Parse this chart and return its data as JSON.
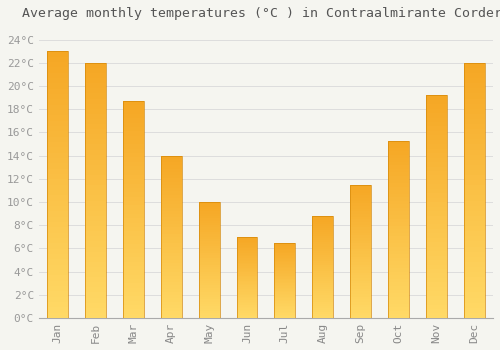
{
  "title": "Average monthly temperatures (°C ) in Contraalmirante Cordero",
  "months": [
    "Jan",
    "Feb",
    "Mar",
    "Apr",
    "May",
    "Jun",
    "Jul",
    "Aug",
    "Sep",
    "Oct",
    "Nov",
    "Dec"
  ],
  "values": [
    23.0,
    22.0,
    18.7,
    14.0,
    10.0,
    7.0,
    6.5,
    8.8,
    11.5,
    15.3,
    19.2,
    22.0
  ],
  "bar_color_top": "#F5A623",
  "bar_color_bottom": "#FFD966",
  "bar_edge_color": "#D4880A",
  "background_color": "#F5F5F0",
  "plot_bg_color": "#F5F5F0",
  "grid_color": "#DDDDDD",
  "ylim": [
    0,
    25
  ],
  "title_fontsize": 9.5,
  "tick_fontsize": 8,
  "tick_color": "#999999",
  "label_color": "#888888",
  "font_family": "monospace",
  "bar_width": 0.55
}
